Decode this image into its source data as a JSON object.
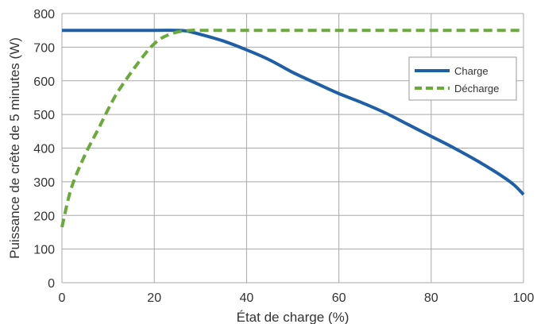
{
  "chart_data": {
    "type": "line",
    "title": "",
    "xlabel": "État de charge (%)",
    "ylabel": "Puissance de crête de 5 minutes (W)",
    "xlim": [
      0,
      100
    ],
    "ylim": [
      0,
      800
    ],
    "xticks": [
      0,
      20,
      40,
      60,
      80,
      100
    ],
    "yticks": [
      0,
      100,
      200,
      300,
      400,
      500,
      600,
      700,
      800
    ],
    "xtick_labels": [
      "0",
      "20",
      "40",
      "60",
      "80",
      "100"
    ],
    "ytick_labels": [
      "0",
      "100",
      "200",
      "300",
      "400",
      "500",
      "600",
      "700",
      "800"
    ],
    "grid": true,
    "legend_position": "right",
    "series": [
      {
        "name": "Charge",
        "color": "#1f5fa6",
        "style": "solid",
        "x": [
          0,
          10,
          20,
          25,
          27,
          30,
          35,
          40,
          45,
          50,
          55,
          60,
          65,
          70,
          75,
          80,
          85,
          90,
          95,
          98,
          100
        ],
        "y": [
          750,
          750,
          750,
          750,
          748,
          738,
          718,
          692,
          662,
          625,
          593,
          562,
          535,
          505,
          470,
          435,
          400,
          362,
          320,
          290,
          262
        ]
      },
      {
        "name": "Décharge",
        "color": "#6aaa3a",
        "style": "dashed",
        "x": [
          0,
          2,
          5,
          8,
          10,
          12,
          15,
          18,
          20,
          22,
          25,
          28,
          30,
          40,
          60,
          80,
          100
        ],
        "y": [
          165,
          280,
          380,
          460,
          515,
          565,
          625,
          680,
          710,
          730,
          745,
          750,
          750,
          750,
          750,
          750,
          750
        ]
      }
    ]
  }
}
